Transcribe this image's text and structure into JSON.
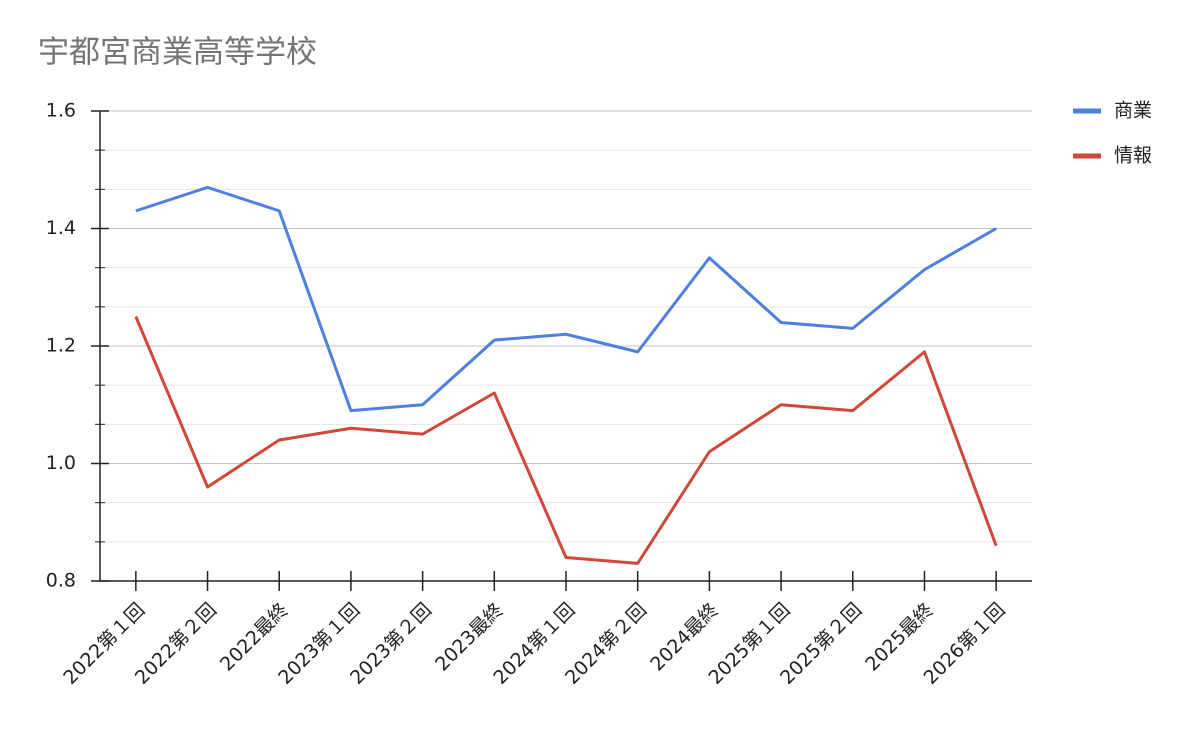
{
  "chart_data": {
    "type": "line",
    "title": "宇都宮商業高等学校",
    "categories": [
      "2022第１回",
      "2022第２回",
      "2022最終",
      "2023第１回",
      "2023第２回",
      "2023最終",
      "2024第１回",
      "2024第２回",
      "2024最終",
      "2025第１回",
      "2025第２回",
      "2025最終",
      "2026第１回"
    ],
    "series": [
      {
        "name": "商業",
        "color": "#4f7fe0",
        "values": [
          1.43,
          1.47,
          1.43,
          1.09,
          1.1,
          1.21,
          1.22,
          1.19,
          1.35,
          1.24,
          1.23,
          1.33,
          1.4
        ]
      },
      {
        "name": "情報",
        "color": "#d0473b",
        "values": [
          1.25,
          0.96,
          1.04,
          1.06,
          1.05,
          1.12,
          0.84,
          0.83,
          1.02,
          1.1,
          1.09,
          1.19,
          0.86
        ]
      }
    ],
    "ylim": [
      0.8,
      1.6
    ],
    "yticks": [
      0.8,
      {
        "value": 1,
        "label": "1.0"
      },
      1.2,
      1.4,
      1.6
    ],
    "grid": true,
    "legend": "right"
  }
}
